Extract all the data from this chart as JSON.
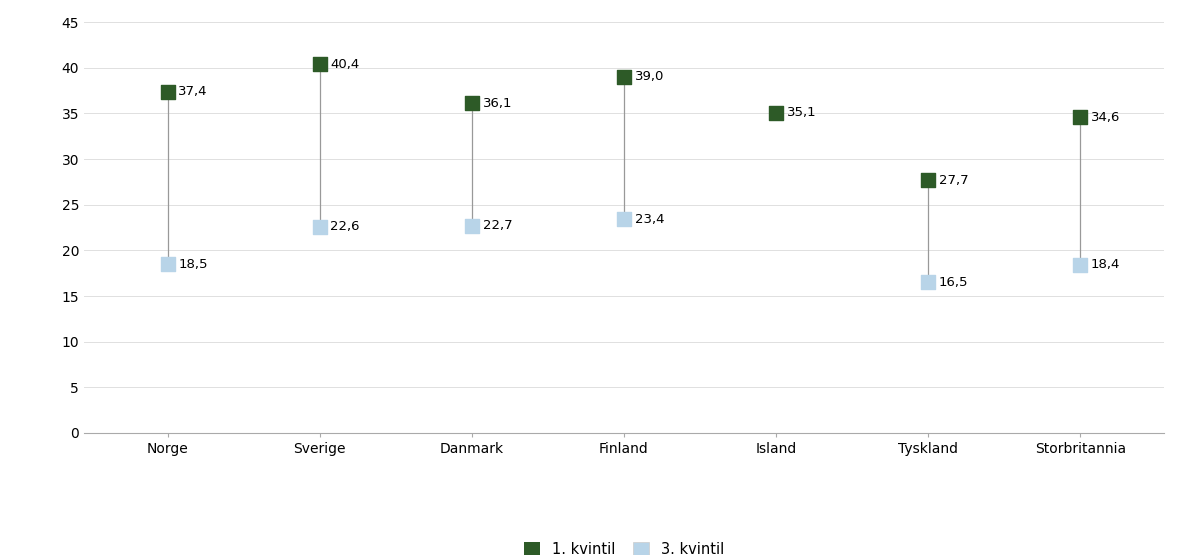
{
  "categories": [
    "Norge",
    "Sverige",
    "Danmark",
    "Finland",
    "Island",
    "Tyskland",
    "Storbritannia"
  ],
  "quintile1": [
    37.4,
    40.4,
    36.1,
    39.0,
    35.1,
    27.7,
    34.6
  ],
  "quintile3": [
    18.5,
    22.6,
    22.7,
    23.4,
    null,
    16.5,
    18.4
  ],
  "quintile1_labels": [
    "37,4",
    "40,4",
    "36,1",
    "39,0",
    "35,1",
    "27,7",
    "34,6"
  ],
  "quintile3_labels": [
    "18,5",
    "22,6",
    "22,7",
    "23,4",
    null,
    "16,5",
    "18,4"
  ],
  "color_q1": "#2d5a27",
  "color_q3": "#b8d4e8",
  "marker_size": 100,
  "ylim": [
    0,
    45
  ],
  "yticks": [
    0,
    5,
    10,
    15,
    20,
    25,
    30,
    35,
    40,
    45
  ],
  "legend_label_q1": "1. kvintil",
  "legend_label_q3": "3. kvintil",
  "line_color": "#999999",
  "label_fontsize": 9.5,
  "tick_fontsize": 10,
  "legend_fontsize": 10.5,
  "spine_color": "#aaaaaa",
  "grid_color": "#e0e0e0"
}
